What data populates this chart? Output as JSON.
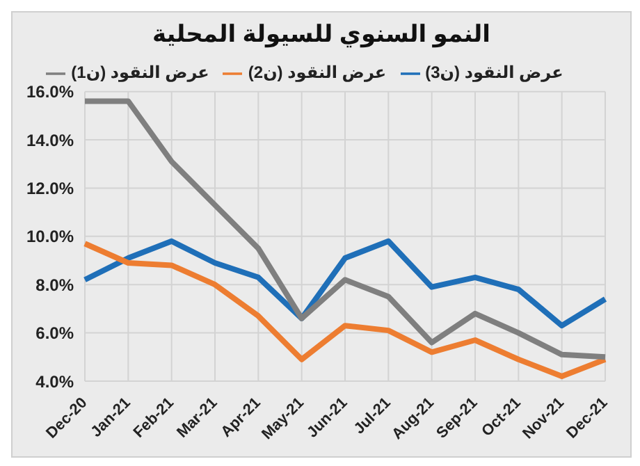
{
  "chart_data": {
    "type": "line",
    "title": "النمو السنوي للسيولة المحلية",
    "categories": [
      "Dec-20",
      "Jan-21",
      "Feb-21",
      "Mar-21",
      "Apr-21",
      "May-21",
      "Jun-21",
      "Jul-21",
      "Aug-21",
      "Sep-21",
      "Oct-21",
      "Nov-21",
      "Dec-21"
    ],
    "series": [
      {
        "name": "عرض النقود (ن3)",
        "color": "#1f6fb8",
        "values": [
          8.2,
          9.1,
          9.8,
          8.9,
          8.3,
          6.6,
          9.1,
          9.8,
          7.9,
          8.3,
          7.8,
          6.3,
          7.4
        ]
      },
      {
        "name": "عرض النقود (ن2)",
        "color": "#ed7d31",
        "values": [
          9.7,
          8.9,
          8.8,
          8.0,
          6.7,
          4.9,
          6.3,
          6.1,
          5.2,
          5.7,
          4.9,
          4.2,
          4.9
        ]
      },
      {
        "name": "عرض النقود (ن1)",
        "color": "#7f7f7f",
        "values": [
          15.6,
          15.6,
          13.1,
          11.3,
          9.5,
          6.6,
          8.2,
          7.5,
          5.6,
          6.8,
          6.0,
          5.1,
          5.0
        ]
      }
    ],
    "ylim": [
      4,
      16
    ],
    "yticks": [
      {
        "value": 4,
        "label": "4.0%"
      },
      {
        "value": 6,
        "label": "6.0%"
      },
      {
        "value": 8,
        "label": "8.0%"
      },
      {
        "value": 10,
        "label": "10.0%"
      },
      {
        "value": 12,
        "label": "12.0%"
      },
      {
        "value": 14,
        "label": "14.0%"
      },
      {
        "value": 16,
        "label": "16.0%"
      }
    ],
    "grid": true,
    "legend": "top",
    "marker": "none",
    "line_style": "solid"
  }
}
